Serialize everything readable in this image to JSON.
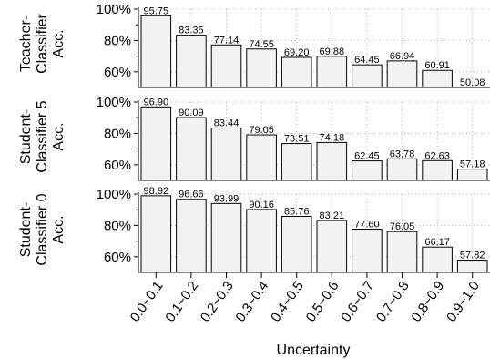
{
  "chart_data": {
    "type": "bar",
    "xlabel": "Uncertainty",
    "categories": [
      "0.0~0.1",
      "0.1~0.2",
      "0.2~0.3",
      "0.3~0.4",
      "0.4~0.5",
      "0.5~0.6",
      "0.6~0.7",
      "0.7~0.8",
      "0.8~0.9",
      "0.9~1.0"
    ],
    "ylim": [
      50,
      100
    ],
    "yticks": [
      "60%",
      "80%",
      "100%"
    ],
    "grid": true,
    "bar_color": "#f2f2f2",
    "panels": [
      {
        "ylabel_lines": [
          "Teacher-",
          "Classifier",
          "Acc."
        ],
        "values": [
          95.75,
          83.35,
          77.14,
          74.55,
          69.2,
          69.88,
          64.45,
          66.94,
          60.91,
          50.08
        ],
        "value_labels": [
          "95.75",
          "83.35",
          "77.14",
          "74.55",
          "69.20",
          "69.88",
          "64.45",
          "66.94",
          "60.91",
          "50.08"
        ]
      },
      {
        "ylabel_lines": [
          "Student-",
          "Classifier 5",
          "Acc."
        ],
        "values": [
          96.9,
          90.09,
          83.44,
          79.05,
          73.51,
          74.18,
          62.45,
          63.78,
          62.63,
          57.18
        ],
        "value_labels": [
          "96.90",
          "90.09",
          "83.44",
          "79.05",
          "73.51",
          "74.18",
          "62.45",
          "63.78",
          "62.63",
          "57.18"
        ]
      },
      {
        "ylabel_lines": [
          "Student-",
          "Classifier 0",
          "Acc."
        ],
        "values": [
          98.92,
          96.66,
          93.99,
          90.16,
          85.76,
          83.21,
          77.6,
          76.05,
          66.17,
          57.82
        ],
        "value_labels": [
          "98.92",
          "96.66",
          "93.99",
          "90.16",
          "85.76",
          "83.21",
          "77.60",
          "76.05",
          "66.17",
          "57.82"
        ]
      }
    ]
  }
}
